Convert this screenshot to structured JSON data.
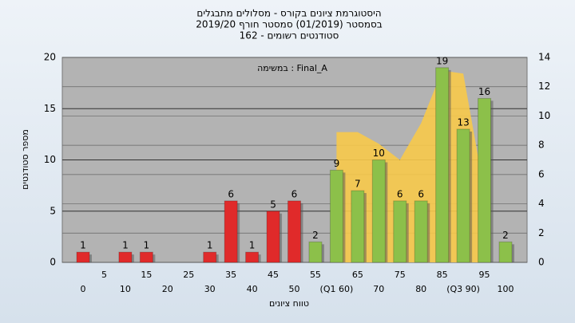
{
  "chart_data": {
    "type": "bar",
    "title": "היסטוגרמת ציונים בקורס - מסלולים מתבגלים",
    "subtitle": [
      "בסמסטר  (01/2019)  סמסטר חורף 2019/20",
      "סטודנטים רשומים - 162"
    ],
    "annotation": "במשימה : Final_A",
    "x_label": "טווח ציונים",
    "y_label": "מספר סטודנטים",
    "categories": [
      "0",
      "5",
      "10",
      "15",
      "20",
      "25",
      "30",
      "35",
      "40",
      "45",
      "50",
      "55",
      "(Q1 60)",
      "65",
      "70",
      "75",
      "80",
      "85",
      "(Q3 90)",
      "95",
      "100"
    ],
    "series": [
      {
        "type": "bar",
        "values": [
          1,
          0,
          1,
          1,
          0,
          0,
          1,
          6,
          1,
          5,
          6,
          2,
          9,
          7,
          10,
          6,
          6,
          19,
          13,
          16,
          2
        ],
        "colors": [
          "#e02a2a",
          "#e02a2a",
          "#e02a2a",
          "#e02a2a",
          "#e02a2a",
          "#e02a2a",
          "#e02a2a",
          "#e02a2a",
          "#e02a2a",
          "#e02a2a",
          "#e02a2a",
          "#8cc04a",
          "#8cc04a",
          "#8cc04a",
          "#8cc04a",
          "#8cc04a",
          "#8cc04a",
          "#8cc04a",
          "#8cc04a",
          "#8cc04a",
          "#8cc04a"
        ]
      },
      {
        "type": "area",
        "axis": "y2",
        "color": "#f7c94a",
        "values": [
          null,
          null,
          null,
          null,
          null,
          null,
          null,
          null,
          null,
          null,
          null,
          null,
          8.9,
          8.9,
          8.1,
          7,
          9.5,
          13.1,
          12.9,
          4.8,
          null
        ]
      }
    ],
    "ylim": [
      0,
      20
    ],
    "yticks": [
      0,
      5,
      10,
      15,
      20
    ],
    "y2lim": [
      0,
      14
    ],
    "y2ticks": [
      0,
      2,
      4,
      6,
      8,
      10,
      12,
      14
    ],
    "grid": true
  }
}
